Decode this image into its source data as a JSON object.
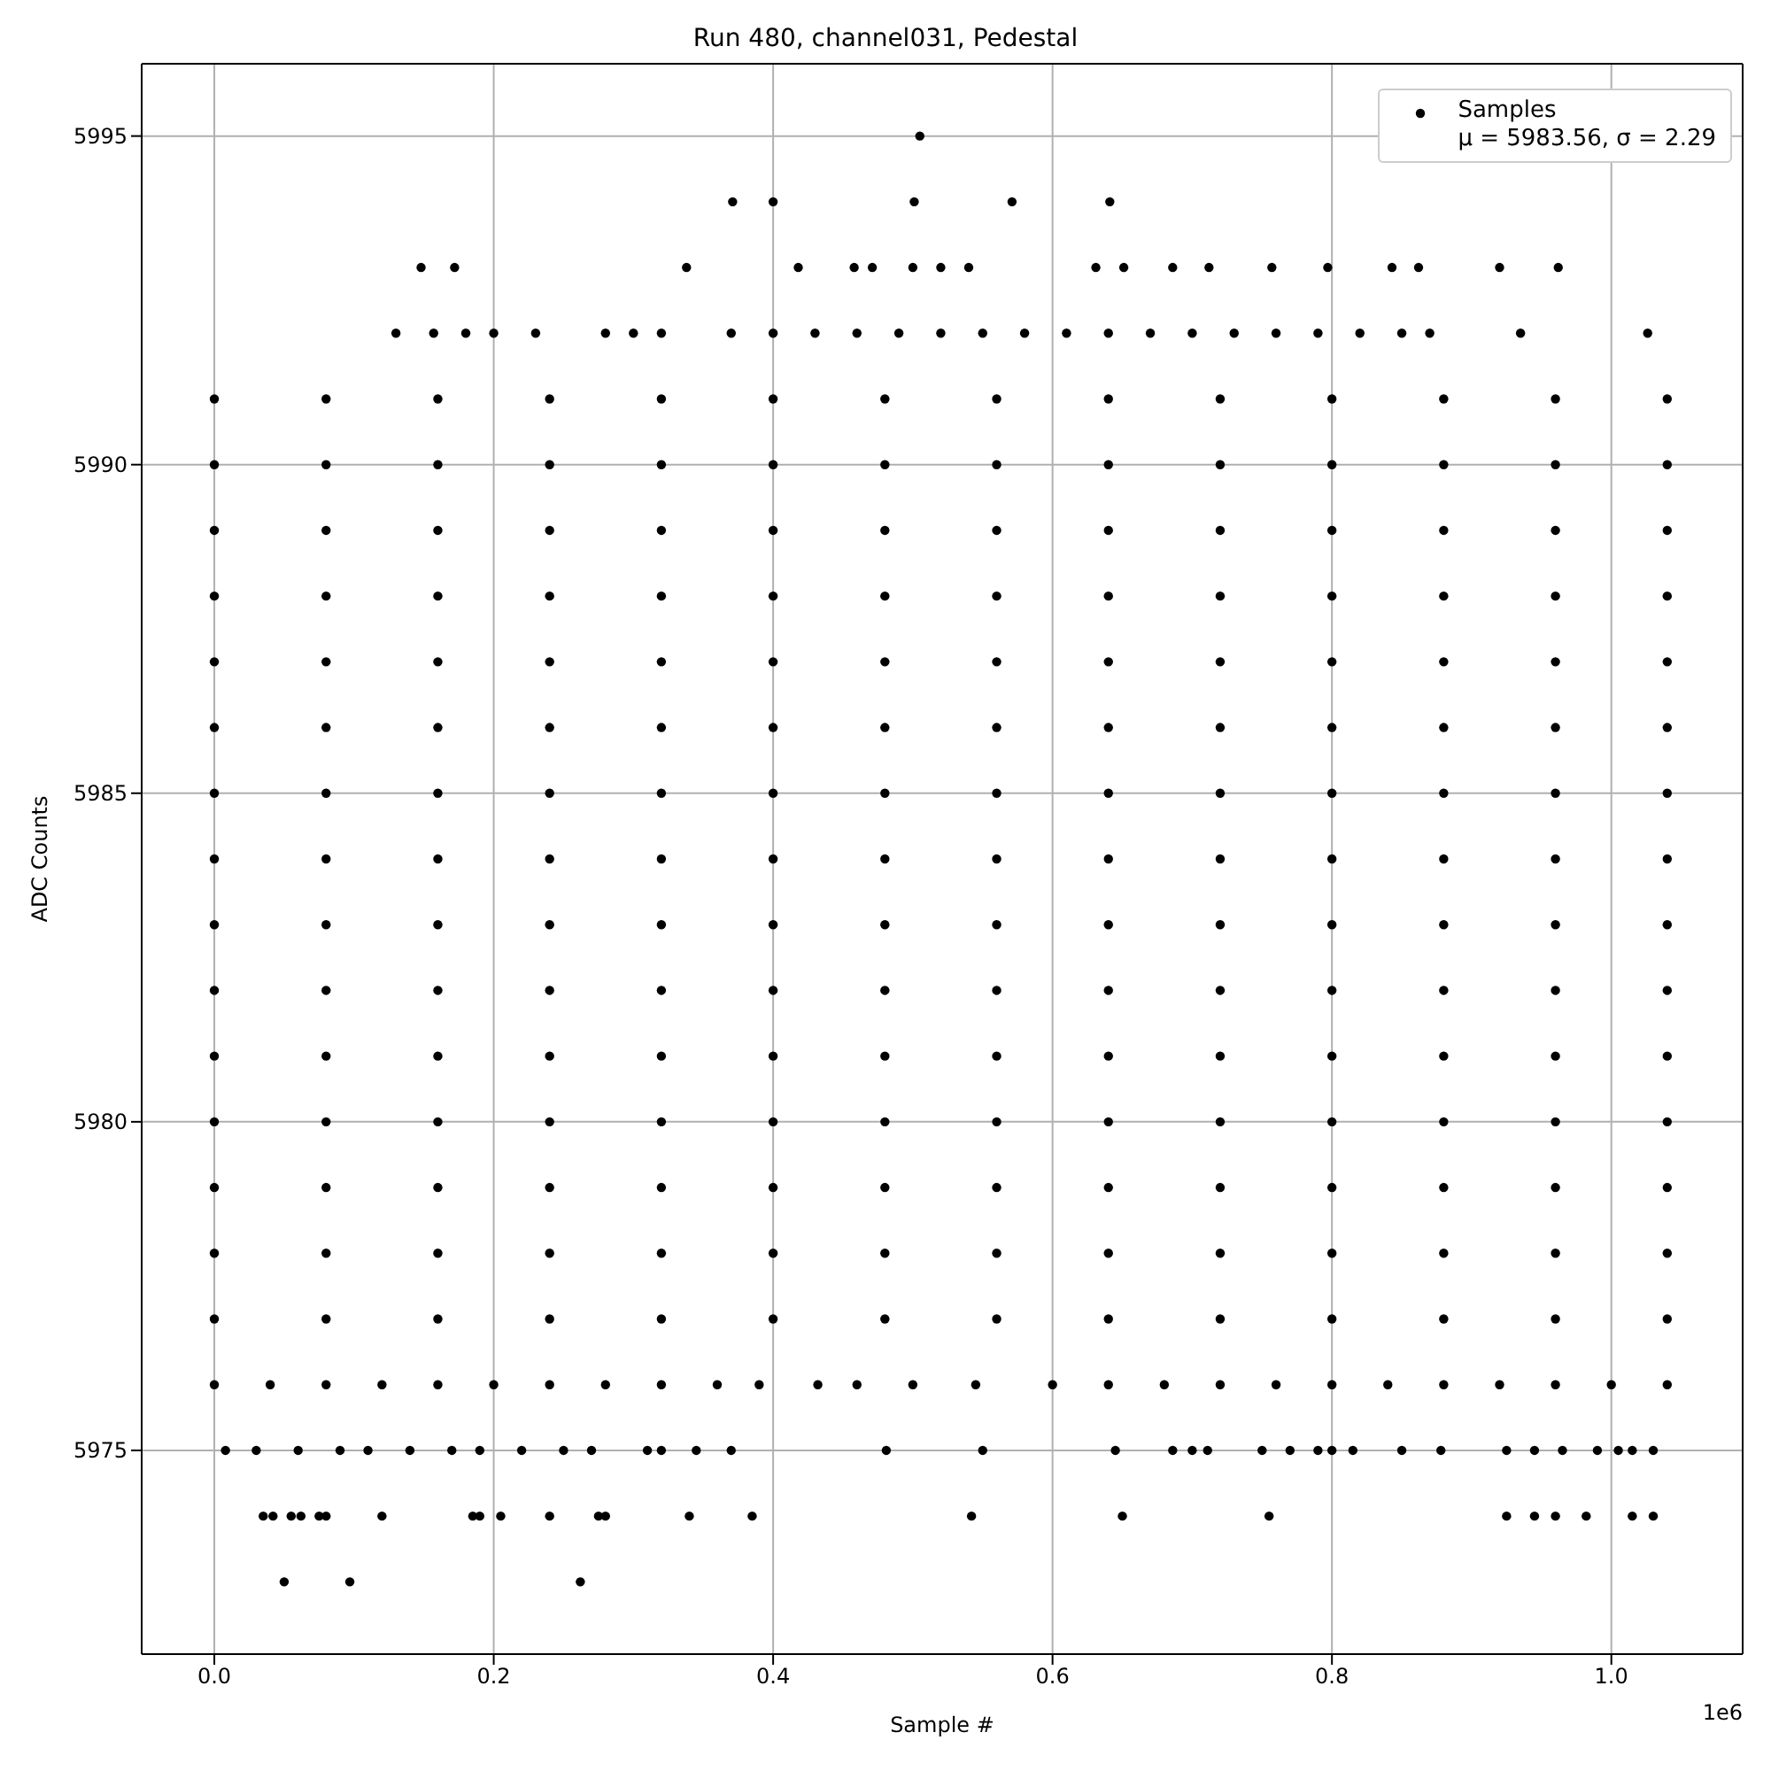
{
  "chart_data": {
    "type": "scatter",
    "title": "Run 480, channel031, Pedestal",
    "xlabel": "Sample #",
    "ylabel": "ADC Counts",
    "annotations": [
      "1e6"
    ],
    "xlim": [
      -0.052,
      1.094
    ],
    "ylim": [
      5971.9,
      5996.1
    ],
    "xticks": [
      {
        "value": 0,
        "label": "0.0"
      },
      0.2,
      0.4,
      0.6,
      0.8,
      {
        "value": 1,
        "label": "1.0"
      }
    ],
    "yticks": [
      5975,
      5980,
      5985,
      5990,
      5995
    ],
    "grid": true,
    "legend": "top right",
    "marker": "circle",
    "series": [
      {
        "name": "Samples\nμ = 5983.56, σ = 2.29",
        "color": "#000000",
        "x": [
          0.05,
          0.097,
          0.262,
          0.035,
          0.042,
          0.055,
          0.062,
          0.075,
          0.08,
          0.12,
          0.185,
          0.19,
          0.205,
          0.24,
          0.275,
          0.28,
          0.34,
          0.385,
          0.542,
          0.65,
          0.755,
          0.925,
          0.945,
          0.96,
          0.982,
          1.015,
          1.03,
          0.008,
          0.03,
          0.06,
          0.09,
          0.11,
          0.14,
          0.17,
          0.19,
          0.22,
          0.25,
          0.27,
          0.31,
          0.32,
          0.345,
          0.37,
          0.481,
          0.55,
          0.645,
          0.686,
          0.7,
          0.711,
          0.75,
          0.77,
          0.79,
          0.8,
          0.815,
          0.85,
          0.878,
          0.925,
          0.945,
          0.965,
          0.99,
          1.005,
          1.015,
          1.03,
          0,
          0.04,
          0.08,
          0.12,
          0.16,
          0.2,
          0.24,
          0.28,
          0.32,
          0.36,
          0.39,
          0.432,
          0.46,
          0.5,
          0.545,
          0.6,
          0.64,
          0.68,
          0.72,
          0.76,
          0.8,
          0.84,
          0.88,
          0.92,
          0.96,
          1,
          1.04,
          0,
          0.08,
          0.16,
          0.24,
          0.32,
          0.4,
          0.48,
          0.56,
          0.64,
          0.72,
          0.8,
          0.88,
          0.96,
          1.04,
          0,
          0.08,
          0.16,
          0.24,
          0.32,
          0.4,
          0.48,
          0.56,
          0.64,
          0.72,
          0.8,
          0.88,
          0.96,
          1.04,
          0,
          0.08,
          0.16,
          0.24,
          0.32,
          0.4,
          0.48,
          0.56,
          0.64,
          0.72,
          0.8,
          0.88,
          0.96,
          1.04,
          0,
          0.08,
          0.16,
          0.24,
          0.32,
          0.4,
          0.48,
          0.56,
          0.64,
          0.72,
          0.8,
          0.88,
          0.96,
          1.04,
          0,
          0.08,
          0.16,
          0.24,
          0.32,
          0.4,
          0.48,
          0.56,
          0.64,
          0.72,
          0.8,
          0.88,
          0.96,
          1.04,
          0,
          0.08,
          0.16,
          0.24,
          0.32,
          0.4,
          0.48,
          0.56,
          0.64,
          0.72,
          0.8,
          0.88,
          0.96,
          1.04,
          0,
          0.08,
          0.16,
          0.24,
          0.32,
          0.4,
          0.48,
          0.56,
          0.64,
          0.72,
          0.8,
          0.88,
          0.96,
          1.04,
          0,
          0.08,
          0.16,
          0.24,
          0.32,
          0.4,
          0.48,
          0.56,
          0.64,
          0.72,
          0.8,
          0.88,
          0.96,
          1.04,
          0,
          0.08,
          0.16,
          0.24,
          0.32,
          0.4,
          0.48,
          0.56,
          0.64,
          0.72,
          0.8,
          0.88,
          0.96,
          1.04,
          0,
          0.08,
          0.16,
          0.24,
          0.32,
          0.4,
          0.48,
          0.56,
          0.64,
          0.72,
          0.8,
          0.88,
          0.96,
          1.04,
          0,
          0.08,
          0.16,
          0.24,
          0.32,
          0.4,
          0.48,
          0.56,
          0.64,
          0.72,
          0.8,
          0.88,
          0.96,
          1.04,
          0,
          0.08,
          0.16,
          0.24,
          0.32,
          0.4,
          0.48,
          0.56,
          0.64,
          0.72,
          0.8,
          0.88,
          0.96,
          1.04,
          0,
          0.08,
          0.16,
          0.24,
          0.32,
          0.4,
          0.48,
          0.56,
          0.64,
          0.72,
          0.8,
          0.88,
          0.96,
          1.04,
          0,
          0.08,
          0.16,
          0.24,
          0.32,
          0.4,
          0.48,
          0.56,
          0.64,
          0.72,
          0.8,
          0.88,
          0.96,
          1.04,
          0,
          0.08,
          0.16,
          0.24,
          0.32,
          0.4,
          0.48,
          0.56,
          0.64,
          0.72,
          0.8,
          0.88,
          0.96,
          1.04,
          0.13,
          0.157,
          0.18,
          0.2,
          0.23,
          0.28,
          0.3,
          0.32,
          0.37,
          0.4,
          0.43,
          0.46,
          0.49,
          0.52,
          0.55,
          0.58,
          0.61,
          0.64,
          0.67,
          0.7,
          0.73,
          0.76,
          0.79,
          0.82,
          0.85,
          0.87,
          0.935,
          1.026,
          0.148,
          0.172,
          0.338,
          0.418,
          0.458,
          0.471,
          0.5,
          0.52,
          0.54,
          0.631,
          0.651,
          0.686,
          0.712,
          0.757,
          0.797,
          0.843,
          0.862,
          0.92,
          0.962,
          0.371,
          0.4,
          0.501,
          0.571,
          0.641,
          0.505
        ],
        "values": [
          5973,
          5973,
          5973,
          5974,
          5974,
          5974,
          5974,
          5974,
          5974,
          5974,
          5974,
          5974,
          5974,
          5974,
          5974,
          5974,
          5974,
          5974,
          5974,
          5974,
          5974,
          5974,
          5974,
          5974,
          5974,
          5974,
          5974,
          5975,
          5975,
          5975,
          5975,
          5975,
          5975,
          5975,
          5975,
          5975,
          5975,
          5975,
          5975,
          5975,
          5975,
          5975,
          5975,
          5975,
          5975,
          5975,
          5975,
          5975,
          5975,
          5975,
          5975,
          5975,
          5975,
          5975,
          5975,
          5975,
          5975,
          5975,
          5975,
          5975,
          5975,
          5975,
          5976,
          5976,
          5976,
          5976,
          5976,
          5976,
          5976,
          5976,
          5976,
          5976,
          5976,
          5976,
          5976,
          5976,
          5976,
          5976,
          5976,
          5976,
          5976,
          5976,
          5976,
          5976,
          5976,
          5976,
          5976,
          5976,
          5976,
          5977,
          5977,
          5977,
          5977,
          5977,
          5977,
          5977,
          5977,
          5977,
          5977,
          5977,
          5977,
          5977,
          5977,
          5978,
          5978,
          5978,
          5978,
          5978,
          5978,
          5978,
          5978,
          5978,
          5978,
          5978,
          5978,
          5978,
          5978,
          5979,
          5979,
          5979,
          5979,
          5979,
          5979,
          5979,
          5979,
          5979,
          5979,
          5979,
          5979,
          5979,
          5979,
          5980,
          5980,
          5980,
          5980,
          5980,
          5980,
          5980,
          5980,
          5980,
          5980,
          5980,
          5980,
          5980,
          5980,
          5981,
          5981,
          5981,
          5981,
          5981,
          5981,
          5981,
          5981,
          5981,
          5981,
          5981,
          5981,
          5981,
          5981,
          5982,
          5982,
          5982,
          5982,
          5982,
          5982,
          5982,
          5982,
          5982,
          5982,
          5982,
          5982,
          5982,
          5982,
          5983,
          5983,
          5983,
          5983,
          5983,
          5983,
          5983,
          5983,
          5983,
          5983,
          5983,
          5983,
          5983,
          5983,
          5984,
          5984,
          5984,
          5984,
          5984,
          5984,
          5984,
          5984,
          5984,
          5984,
          5984,
          5984,
          5984,
          5984,
          5985,
          5985,
          5985,
          5985,
          5985,
          5985,
          5985,
          5985,
          5985,
          5985,
          5985,
          5985,
          5985,
          5985,
          5986,
          5986,
          5986,
          5986,
          5986,
          5986,
          5986,
          5986,
          5986,
          5986,
          5986,
          5986,
          5986,
          5986,
          5987,
          5987,
          5987,
          5987,
          5987,
          5987,
          5987,
          5987,
          5987,
          5987,
          5987,
          5987,
          5987,
          5987,
          5988,
          5988,
          5988,
          5988,
          5988,
          5988,
          5988,
          5988,
          5988,
          5988,
          5988,
          5988,
          5988,
          5988,
          5989,
          5989,
          5989,
          5989,
          5989,
          5989,
          5989,
          5989,
          5989,
          5989,
          5989,
          5989,
          5989,
          5989,
          5990,
          5990,
          5990,
          5990,
          5990,
          5990,
          5990,
          5990,
          5990,
          5990,
          5990,
          5990,
          5990,
          5990,
          5991,
          5991,
          5991,
          5991,
          5991,
          5991,
          5991,
          5991,
          5991,
          5991,
          5991,
          5991,
          5991,
          5991,
          5992,
          5992,
          5992,
          5992,
          5992,
          5992,
          5992,
          5992,
          5992,
          5992,
          5992,
          5992,
          5992,
          5992,
          5992,
          5992,
          5992,
          5992,
          5992,
          5992,
          5992,
          5992,
          5992,
          5992,
          5992,
          5992,
          5992,
          5992,
          5993,
          5993,
          5993,
          5993,
          5993,
          5993,
          5993,
          5993,
          5993,
          5993,
          5993,
          5993,
          5993,
          5993,
          5993,
          5993,
          5993,
          5993,
          5993,
          5994,
          5994,
          5994,
          5994,
          5994,
          5995
        ]
      }
    ]
  }
}
